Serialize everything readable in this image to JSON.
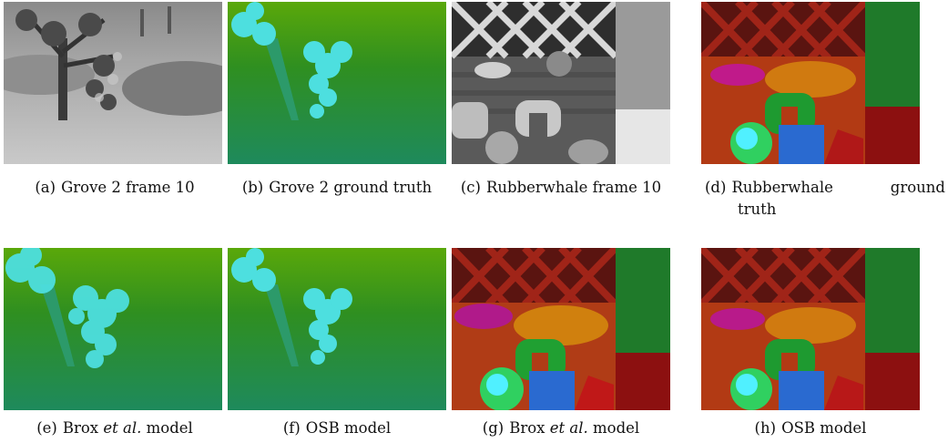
{
  "figures": [
    {
      "id": "a",
      "caption_prefix": "(a)",
      "caption": "Grove 2 frame 10"
    },
    {
      "id": "b",
      "caption_prefix": "(b)",
      "caption": "Grove 2 ground truth"
    },
    {
      "id": "c",
      "caption_prefix": "(c)",
      "caption": "Rubberwhale frame 10"
    },
    {
      "id": "d",
      "caption_prefix": "(d)",
      "caption_first": "Rubberwhale",
      "caption_first_end": "ground",
      "caption_second": "truth"
    },
    {
      "id": "e",
      "caption_prefix": "(e)",
      "caption_lead": "Brox",
      "caption_em": "et al.",
      "caption_tail": "model"
    },
    {
      "id": "f",
      "caption_prefix": "(f)",
      "caption": "OSB model"
    },
    {
      "id": "g",
      "caption_prefix": "(g)",
      "caption_lead": "Brox",
      "caption_em": "et al.",
      "caption_tail": "model"
    },
    {
      "id": "h",
      "caption_prefix": "(h)",
      "caption": "OSB model"
    }
  ]
}
